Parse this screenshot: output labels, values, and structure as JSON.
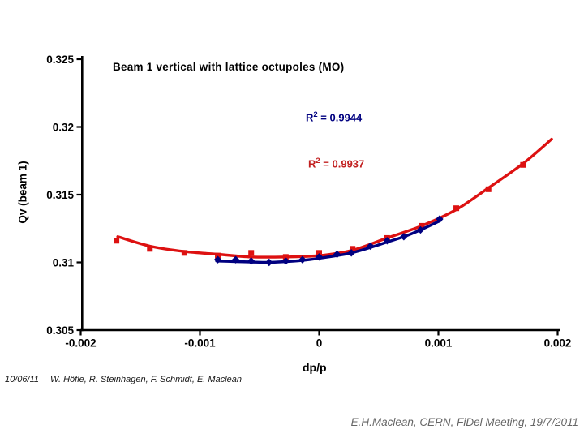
{
  "slide": {
    "footer": {
      "date": "10/06/11",
      "authors": "W. Höfle, R. Steinhagen, F. Schmidt, E. Maclean"
    },
    "credit": "E.H.Maclean, CERN, FiDel Meeting, 19/7/2011"
  },
  "chart_data": {
    "type": "scatter",
    "title": "Beam 1 vertical with lattice octupoles (MO)",
    "xlabel": "dp/p",
    "ylabel": "Qv (beam 1)",
    "xlim": [
      -0.002,
      0.002
    ],
    "ylim": [
      0.305,
      0.325
    ],
    "x_ticks": [
      -0.002,
      -0.001,
      0,
      0.001,
      0.002
    ],
    "x_tick_labels": [
      "-0.002",
      "-0.001",
      "0",
      "0.001",
      "0.002"
    ],
    "y_ticks": [
      0.305,
      0.31,
      0.315,
      0.32,
      0.325
    ],
    "y_tick_labels": [
      "0.305",
      "0.31",
      "0.315",
      "0.32",
      "0.325"
    ],
    "grid": false,
    "legend": "none",
    "annotations": [
      {
        "id": "r2-blue",
        "prefix": "R",
        "sup": "2",
        "suffix": " = 0.9944",
        "color": "#000080"
      },
      {
        "id": "r2-red",
        "prefix": "R",
        "sup": "2",
        "suffix": " = 0.9937",
        "color": "#c22020"
      }
    ],
    "series": [
      {
        "id": "red-squares",
        "marker": "square",
        "color": "#dd1111",
        "x": [
          -0.0017,
          -0.00142,
          -0.00113,
          -0.00085,
          -0.00057,
          -0.00028,
          0,
          0.00028,
          0.00057,
          0.00086,
          0.00115,
          0.00142,
          0.00171
        ],
        "y": [
          0.3116,
          0.311,
          0.3107,
          0.3105,
          0.3107,
          0.3104,
          0.3107,
          0.311,
          0.3118,
          0.3127,
          0.314,
          0.3154,
          0.3172
        ],
        "fit_x": [
          -0.00169,
          -0.00142,
          -0.00113,
          -0.00085,
          -0.00057,
          -0.00028,
          0,
          0.00028,
          0.00057,
          0.00086,
          0.00115,
          0.00142,
          0.00171,
          0.00195
        ],
        "fit_y": [
          0.3119,
          0.3112,
          0.3108,
          0.3106,
          0.3104,
          0.3104,
          0.3105,
          0.3109,
          0.3118,
          0.3127,
          0.3139,
          0.3155,
          0.3173,
          0.3191
        ]
      },
      {
        "id": "blue-diamonds",
        "marker": "diamond",
        "color": "#000080",
        "x": [
          -0.00085,
          -0.0007,
          -0.00057,
          -0.00042,
          -0.00028,
          -0.00014,
          0,
          0.00015,
          0.00027,
          0.00043,
          0.00057,
          0.00071,
          0.00085,
          0.00101
        ],
        "y": [
          0.3102,
          0.3102,
          0.3101,
          0.31,
          0.3101,
          0.3102,
          0.3104,
          0.3106,
          0.3107,
          0.3112,
          0.3116,
          0.3119,
          0.3124,
          0.3132
        ],
        "fit_x": [
          -0.00086,
          -0.0007,
          -0.00057,
          -0.00042,
          -0.00028,
          -0.00014,
          0,
          0.00015,
          0.00027,
          0.00043,
          0.00057,
          0.00071,
          0.00085,
          0.00102
        ],
        "fit_y": [
          0.3101,
          0.31006,
          0.31003,
          0.31,
          0.31006,
          0.31015,
          0.3103,
          0.3105,
          0.3107,
          0.3111,
          0.3115,
          0.3119,
          0.3124,
          0.3131
        ]
      }
    ]
  }
}
